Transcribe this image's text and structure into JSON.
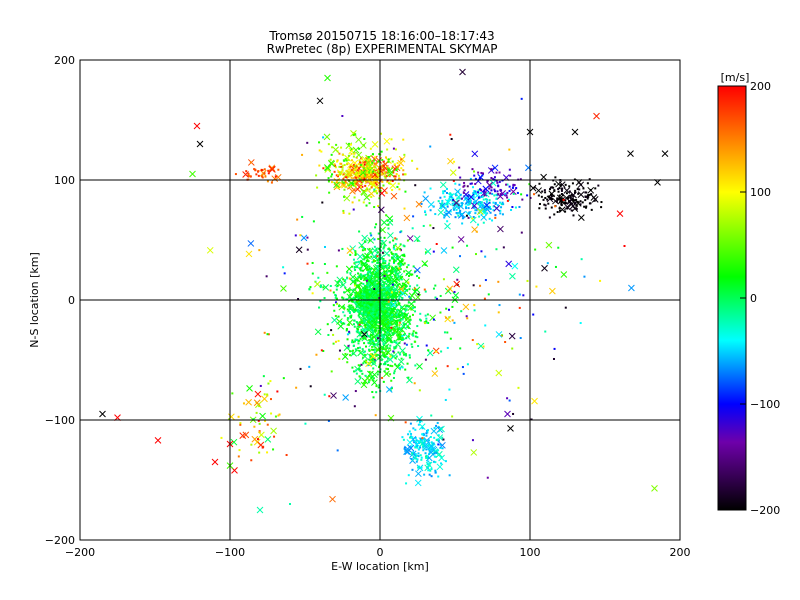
{
  "chart_data": {
    "type": "scatter",
    "title": "Tromsø 20150715 18:16:00–18:17:43",
    "subtitle": "RwPretec (8p) EXPERIMENTAL SKYMAP",
    "xlabel": "E-W location [km]",
    "ylabel": "N-S location [km]",
    "xlim": [
      -200,
      200
    ],
    "ylim": [
      -200,
      200
    ],
    "xticks": [
      -200,
      -100,
      0,
      100,
      200
    ],
    "yticks": [
      -200,
      -100,
      0,
      100,
      200
    ],
    "xtick_labels": [
      "−200",
      "−100",
      "0",
      "100",
      "200"
    ],
    "ytick_labels": [
      "−200",
      "−100",
      "0",
      "100",
      "200"
    ],
    "grid_lines": [
      -100,
      0,
      100
    ],
    "grid": true,
    "marker_types": [
      "dot",
      "x"
    ],
    "colorbar": {
      "label": "[m/s]",
      "range": [
        -200,
        200
      ],
      "ticks": [
        200,
        100,
        0,
        -100,
        -200
      ],
      "tick_labels": [
        "200",
        "100",
        "0",
        "−100",
        "−200"
      ],
      "colormap": "rainbow",
      "colors": [
        "#000000",
        "#6e00aa",
        "#0000ff",
        "#00ffff",
        "#00ff00",
        "#ffff00",
        "#ff0000"
      ]
    },
    "clusters": [
      {
        "x": [
          -40,
          20
        ],
        "y": [
          85,
          125
        ],
        "v": [
          80,
          200
        ],
        "count": 320
      },
      {
        "x": [
          -50,
          30
        ],
        "y": [
          70,
          150
        ],
        "v": [
          20,
          120
        ],
        "count": 180
      },
      {
        "x": [
          -30,
          30
        ],
        "y": [
          -90,
          80
        ],
        "v": [
          -20,
          40
        ],
        "count": 1300
      },
      {
        "x": [
          -20,
          10
        ],
        "y": [
          -20,
          15
        ],
        "v": [
          -10,
          20
        ],
        "count": 420
      },
      {
        "x": [
          -60,
          60
        ],
        "y": [
          -60,
          60
        ],
        "v": [
          -20,
          40
        ],
        "count": 300
      },
      {
        "x": [
          10,
          50
        ],
        "y": [
          -160,
          -90
        ],
        "v": [
          -70,
          -20
        ],
        "count": 180
      },
      {
        "x": [
          20,
          100
        ],
        "y": [
          60,
          100
        ],
        "v": [
          -70,
          -20
        ],
        "count": 220
      },
      {
        "x": [
          40,
          110
        ],
        "y": [
          70,
          120
        ],
        "v": [
          -150,
          -90
        ],
        "count": 90
      },
      {
        "x": [
          95,
          155
        ],
        "y": [
          65,
          105
        ],
        "v": [
          -210,
          -190
        ],
        "count": 160
      },
      {
        "x": [
          -130,
          190
        ],
        "y": [
          -180,
          190
        ],
        "v": [
          -200,
          200
        ],
        "count": 300
      },
      {
        "x": [
          -100,
          -60
        ],
        "y": [
          95,
          115
        ],
        "v": [
          140,
          200
        ],
        "count": 40
      },
      {
        "x": [
          -110,
          -50
        ],
        "y": [
          -150,
          -50
        ],
        "v": [
          -10,
          200
        ],
        "count": 60
      }
    ],
    "points": [
      {
        "x": -185,
        "y": -95,
        "v": -200,
        "m": "x"
      },
      {
        "x": -175,
        "y": -98,
        "v": 200,
        "m": "x"
      },
      {
        "x": -148,
        "y": -117,
        "v": 200,
        "m": "x"
      },
      {
        "x": -110,
        "y": -135,
        "v": 200,
        "m": "x"
      },
      {
        "x": -97,
        "y": -142,
        "v": 200,
        "m": "x"
      },
      {
        "x": -100,
        "y": -120,
        "v": 200,
        "m": "x"
      },
      {
        "x": -100,
        "y": -138,
        "v": 40,
        "m": "x"
      },
      {
        "x": -80,
        "y": -175,
        "v": -20,
        "m": "x"
      },
      {
        "x": -60,
        "y": -170,
        "v": -20,
        "m": "dot"
      },
      {
        "x": 183,
        "y": -157,
        "v": 60,
        "m": "x"
      },
      {
        "x": 87,
        "y": -107,
        "v": -200,
        "m": "x"
      },
      {
        "x": 85,
        "y": -95,
        "v": -130,
        "m": "x"
      },
      {
        "x": -120,
        "y": 130,
        "v": -200,
        "m": "x"
      },
      {
        "x": -122,
        "y": 145,
        "v": 200,
        "m": "x"
      },
      {
        "x": -125,
        "y": 105,
        "v": 40,
        "m": "x"
      },
      {
        "x": 185,
        "y": 98,
        "v": -200,
        "m": "x"
      },
      {
        "x": 190,
        "y": 122,
        "v": -200,
        "m": "x"
      },
      {
        "x": 167,
        "y": 122,
        "v": -200,
        "m": "x"
      },
      {
        "x": 130,
        "y": 140,
        "v": -200,
        "m": "x"
      },
      {
        "x": 100,
        "y": 140,
        "v": -200,
        "m": "x"
      },
      {
        "x": 55,
        "y": 190,
        "v": -180,
        "m": "x"
      },
      {
        "x": -40,
        "y": 166,
        "v": -200,
        "m": "x"
      },
      {
        "x": -35,
        "y": 185,
        "v": 30,
        "m": "x"
      },
      {
        "x": 160,
        "y": 72,
        "v": 200,
        "m": "x"
      },
      {
        "x": 163,
        "y": 45,
        "v": 200,
        "m": "dot"
      }
    ]
  }
}
